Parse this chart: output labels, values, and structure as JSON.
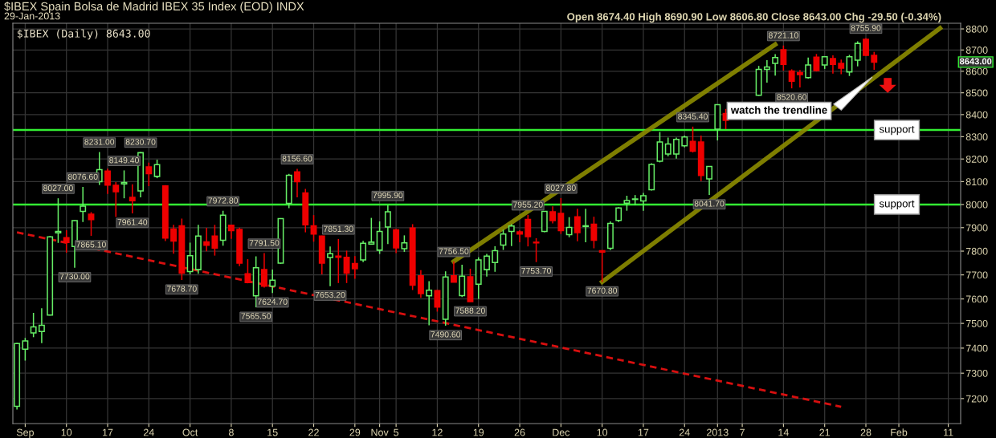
{
  "chart_data": {
    "type": "candlestick",
    "title": "$IBEX Spain Bolsa de Madrid IBEX 35 Index (EOD) INDX",
    "subtitle": "29-Jan-2013",
    "categories": [
      null,
      "Sep",
      null,
      null,
      null,
      null,
      "10",
      null,
      null,
      null,
      null,
      "17",
      null,
      null,
      null,
      null,
      "24",
      null,
      null,
      null,
      null,
      "Oct",
      null,
      null,
      null,
      null,
      "8",
      null,
      null,
      null,
      null,
      "15",
      null,
      null,
      null,
      null,
      "22",
      null,
      null,
      null,
      null,
      "29",
      null,
      null,
      "Nov",
      null,
      "5",
      null,
      null,
      null,
      null,
      "12",
      null,
      null,
      null,
      null,
      "19",
      null,
      null,
      null,
      null,
      "26",
      null,
      null,
      null,
      null,
      "Dec",
      null,
      null,
      null,
      null,
      "10",
      null,
      null,
      null,
      null,
      "17",
      null,
      null,
      null,
      null,
      "24",
      null,
      null,
      null,
      "2013",
      null,
      null,
      "7",
      null,
      null,
      null,
      null,
      "14",
      null,
      null,
      null,
      null,
      "21",
      null,
      null,
      null,
      null,
      "28",
      null,
      null,
      null,
      "Feb",
      null,
      null,
      null,
      null,
      null,
      "11",
      null
    ],
    "ohlc": [
      [
        7170,
        7421,
        7157,
        7418
      ],
      [
        7396,
        7441,
        7350,
        7429
      ],
      [
        7461,
        7543,
        7444,
        7486
      ],
      [
        7467,
        7562,
        7420,
        7492
      ],
      [
        7534,
        7864,
        7532,
        7861
      ],
      [
        7878,
        8027.0,
        7835,
        7884
      ],
      [
        7857,
        7889,
        7793,
        7837
      ],
      [
        7820,
        7932,
        7730.0,
        7930
      ],
      [
        7970,
        8076.6,
        7924,
        7993
      ],
      [
        7958,
        7967,
        7865.1,
        7935
      ],
      [
        8100,
        8231.0,
        8085,
        8153
      ],
      [
        8146,
        8157,
        8046,
        8085
      ],
      [
        8084,
        8098,
        7946,
        8056
      ],
      [
        8090,
        8149.4,
        8027,
        8096
      ],
      [
        8031,
        8088,
        7961.4,
        8016
      ],
      [
        8059,
        8230.7,
        8031,
        8228
      ],
      [
        8165,
        8184,
        8080,
        8135
      ],
      [
        8123,
        8197,
        8115,
        8175
      ],
      [
        8081,
        8085,
        7843,
        7856
      ],
      [
        7894,
        7912,
        7789,
        7843
      ],
      [
        7908,
        7939,
        7678.7,
        7707
      ],
      [
        7714,
        7836,
        7702,
        7781
      ],
      [
        7722,
        7912,
        7705,
        7864
      ],
      [
        7839,
        7899,
        7799,
        7825
      ],
      [
        7864,
        7912,
        7781,
        7813
      ],
      [
        7846,
        7972.8,
        7823,
        7954
      ],
      [
        7910,
        7912,
        7852,
        7887
      ],
      [
        7892,
        7900,
        7737,
        7749
      ],
      [
        7705,
        7766,
        7665,
        7668
      ],
      [
        7613,
        7778,
        7565.5,
        7730
      ],
      [
        7722,
        7791.5,
        7647,
        7653
      ],
      [
        7653,
        7722,
        7624.7,
        7678
      ],
      [
        7749,
        7941,
        7746,
        7939
      ],
      [
        8005,
        8134,
        7984,
        8128
      ],
      [
        8143,
        8156.6,
        8031,
        8100
      ],
      [
        8050,
        8068,
        7880,
        7912
      ],
      [
        7908,
        7954,
        7840,
        7873
      ],
      [
        7864,
        7866,
        7702,
        7749
      ],
      [
        7773,
        7820,
        7653.2,
        7789
      ],
      [
        7779,
        7851.3,
        7666,
        7774
      ],
      [
        7774,
        7802,
        7666,
        7707
      ],
      [
        7748,
        7779,
        7684,
        7726
      ],
      [
        7763,
        7844,
        7754,
        7833
      ],
      [
        7830,
        7942,
        7827,
        7838
      ],
      [
        7804,
        7927,
        7788,
        7884
      ],
      [
        7903,
        7995.9,
        7830,
        7968
      ],
      [
        7891,
        7895,
        7792,
        7814
      ],
      [
        7810,
        7867,
        7797,
        7835
      ],
      [
        7898,
        7915,
        7637,
        7657
      ],
      [
        7696,
        7720,
        7605,
        7622
      ],
      [
        7613,
        7674,
        7492,
        7636
      ],
      [
        7635,
        7637,
        7548,
        7567
      ],
      [
        7517,
        7715,
        7490.6,
        7691
      ],
      [
        7696,
        7756.5,
        7669,
        7670
      ],
      [
        7614,
        7743,
        7608,
        7695
      ],
      [
        7692,
        7726,
        7588.2,
        7589
      ],
      [
        7661,
        7774,
        7600,
        7763
      ],
      [
        7722,
        7788,
        7693,
        7779
      ],
      [
        7752,
        7821,
        7713,
        7802
      ],
      [
        7826,
        7891,
        7805,
        7873
      ],
      [
        7884,
        7915,
        7821,
        7907
      ],
      [
        7882,
        7889,
        7838,
        7873
      ],
      [
        7935,
        7955.2,
        7820,
        7862
      ],
      [
        7838,
        7855,
        7753.7,
        7835
      ],
      [
        7884,
        7972,
        7880,
        7970
      ],
      [
        7968,
        7992,
        7918,
        7930
      ],
      [
        7961,
        8027.8,
        7873,
        7887
      ],
      [
        7870,
        7945,
        7859,
        7901
      ],
      [
        7947,
        7981,
        7842,
        7879
      ],
      [
        7905,
        7981,
        7838,
        7908
      ],
      [
        7915,
        7947,
        7812,
        7846
      ],
      [
        7802,
        7804,
        7670.8,
        7796
      ],
      [
        7812,
        7927,
        7804,
        7918
      ],
      [
        7931,
        7988,
        7924,
        7985
      ],
      [
        8006,
        8038,
        7973,
        8017
      ],
      [
        8022,
        8041,
        7997,
        8024
      ],
      [
        8015,
        8050,
        7973,
        8038
      ],
      [
        8064,
        8181,
        8061,
        8176
      ],
      [
        8190,
        8321,
        8185,
        8276
      ],
      [
        8222,
        8296,
        8212,
        8267
      ],
      [
        8222,
        8296,
        8202,
        8288
      ],
      [
        8259,
        8305,
        8252,
        8299
      ],
      [
        8279,
        8345.4,
        8229,
        8235
      ],
      [
        8276,
        8305,
        8102,
        8127
      ],
      [
        8112,
        8168,
        8041.7,
        8167
      ],
      [
        8334,
        8446,
        8283,
        8445
      ],
      [
        8405,
        8426,
        8334,
        8374
      ],
      null,
      null,
      null,
      [
        8489,
        8625,
        8486,
        8609
      ],
      [
        8609,
        8652,
        8547,
        8620
      ],
      [
        8637,
        8680,
        8580,
        8664
      ],
      [
        8701,
        8721.1,
        8603,
        8632
      ],
      [
        8601,
        8609,
        8520.6,
        8554
      ],
      [
        8594,
        8606,
        8525,
        8584
      ],
      [
        8570,
        8664,
        8566,
        8629
      ],
      [
        8666,
        8681,
        8599,
        8603
      ],
      [
        8629,
        8669,
        8611,
        8668
      ],
      [
        8659,
        8675,
        8589,
        8632
      ],
      [
        8637,
        8655,
        8586,
        8614
      ],
      [
        8597,
        8677,
        8578,
        8668
      ],
      [
        8652,
        8741,
        8623,
        8731
      ],
      [
        8750,
        8755.9,
        8672,
        8675
      ],
      [
        8674.4,
        8690.9,
        8606.8,
        8643.0
      ],
      null,
      null,
      null,
      null,
      null,
      null,
      null,
      null,
      null,
      null
    ],
    "colors": [
      "#66ee66",
      "#66ee66",
      "#66ee66",
      "#66ee66",
      "#66ee66",
      "#66ee66",
      "#ee0000",
      "#66ee66",
      "#66ee66",
      "#ee0000",
      "#66ee66",
      "#ee0000",
      "#ee0000",
      "#66ee66",
      "#ee0000",
      "#66ee66",
      "#ee0000",
      "#66ee66",
      "#ee0000",
      "#ee0000",
      "#ee0000",
      "#66ee66",
      "#66ee66",
      "#ee0000",
      "#ee0000",
      "#66ee66",
      "#ee0000",
      "#ee0000",
      "#ee0000",
      "#66ee66",
      "#ee0000",
      "#66ee66",
      "#66ee66",
      "#66ee66",
      "#ee0000",
      "#ee0000",
      "#ee0000",
      "#ee0000",
      "#66ee66",
      "#ee0000",
      "#ee0000",
      "#ee0000",
      "#66ee66",
      "#66ee66",
      "#66ee66",
      "#66ee66",
      "#ee0000",
      "#66ee66",
      "#ee0000",
      "#ee0000",
      "#66ee66",
      "#ee0000",
      "#66ee66",
      "#ee0000",
      "#66ee66",
      "#ee0000",
      "#66ee66",
      "#66ee66",
      "#66ee66",
      "#66ee66",
      "#66ee66",
      "#ee0000",
      "#ee0000",
      "#ee0000",
      "#66ee66",
      "#ee0000",
      "#ee0000",
      "#66ee66",
      "#ee0000",
      "#66ee66",
      "#ee0000",
      "#ee0000",
      "#66ee66",
      "#66ee66",
      "#66ee66",
      "#66ee66",
      "#66ee66",
      "#66ee66",
      "#66ee66",
      "#66ee66",
      "#66ee66",
      "#66ee66",
      "#ee0000",
      "#ee0000",
      "#66ee66",
      "#66ee66",
      "#ee0000",
      null,
      null,
      null,
      "#66ee66",
      "#66ee66",
      "#66ee66",
      "#ee0000",
      "#ee0000",
      "#ee0000",
      "#66ee66",
      "#ee0000",
      "#66ee66",
      "#ee0000",
      "#ee0000",
      "#66ee66",
      "#66ee66",
      "#ee0000",
      "#ee0000",
      null,
      null,
      null,
      null,
      null,
      null,
      null,
      null,
      null,
      null
    ],
    "value_labels": [
      null,
      null,
      null,
      null,
      null,
      "8027.00",
      null,
      "7730.00",
      "8076.60",
      "7865.10",
      "8231.00",
      null,
      null,
      "8149.40",
      "7961.40",
      "8230.70",
      null,
      null,
      null,
      null,
      "7678.70",
      null,
      null,
      null,
      null,
      "7972.80",
      null,
      null,
      null,
      "7565.50",
      "7791.50",
      "7624.70",
      null,
      null,
      "8156.60",
      null,
      null,
      null,
      "7653.20",
      "7851.30",
      null,
      null,
      null,
      null,
      null,
      "7995.90",
      null,
      null,
      null,
      null,
      null,
      null,
      "7490.60",
      "7756.50",
      null,
      "7588.20",
      null,
      null,
      null,
      null,
      null,
      null,
      "7955.20",
      "7753.70",
      null,
      null,
      "8027.80",
      null,
      null,
      null,
      null,
      "7670.80",
      null,
      null,
      null,
      null,
      null,
      null,
      null,
      null,
      null,
      null,
      "8345.40",
      null,
      "8041.70",
      null,
      null,
      null,
      null,
      null,
      null,
      null,
      null,
      "8721.10",
      "8520.60",
      null,
      null,
      null,
      null,
      null,
      null,
      null,
      null,
      "8755.90",
      null,
      null,
      null,
      null,
      null,
      null,
      null,
      null,
      null,
      null,
      null
    ],
    "series": [
      {
        "type": "line",
        "color": "#ee1111",
        "line_style": "dashed",
        "values": [
          7880,
          null,
          null,
          null,
          null,
          null,
          null,
          null,
          null,
          null,
          null,
          null,
          null,
          null,
          null,
          null,
          null,
          null,
          null,
          null,
          null,
          null,
          null,
          null,
          null,
          null,
          null,
          null,
          null,
          null,
          null,
          null,
          null,
          null,
          null,
          null,
          null,
          null,
          null,
          null,
          null,
          null,
          null,
          null,
          null,
          null,
          null,
          null,
          null,
          null,
          null,
          null,
          null,
          null,
          null,
          null,
          null,
          null,
          null,
          null,
          null,
          null,
          null,
          null,
          null,
          null,
          null,
          null,
          null,
          null,
          null,
          null,
          null,
          null,
          null,
          null,
          null,
          null,
          null,
          null,
          null,
          null,
          null,
          null,
          null,
          null,
          null,
          null,
          null,
          null,
          null,
          null,
          null,
          null,
          null,
          null,
          null,
          null,
          null,
          null,
          7168,
          null,
          null,
          null,
          null,
          null,
          null,
          null,
          null,
          null,
          null,
          null,
          null,
          null,
          null
        ]
      },
      {
        "type": "line",
        "color": "#8c8c00",
        "line_style": "solid",
        "values": [
          null,
          null,
          null,
          null,
          null,
          null,
          null,
          null,
          null,
          null,
          null,
          null,
          null,
          null,
          null,
          null,
          null,
          null,
          null,
          null,
          null,
          null,
          null,
          null,
          null,
          null,
          null,
          null,
          null,
          null,
          null,
          null,
          null,
          null,
          null,
          null,
          null,
          null,
          null,
          null,
          null,
          null,
          null,
          null,
          null,
          null,
          null,
          null,
          null,
          null,
          null,
          null,
          null,
          7756.5,
          null,
          null,
          null,
          null,
          null,
          null,
          null,
          null,
          null,
          null,
          null,
          null,
          null,
          null,
          null,
          null,
          null,
          null,
          null,
          null,
          null,
          null,
          null,
          null,
          null,
          null,
          null,
          null,
          null,
          null,
          null,
          null,
          null,
          null,
          null,
          null,
          null,
          null,
          8726,
          null,
          null,
          null,
          null,
          null,
          null,
          null,
          null,
          null,
          null,
          null,
          null,
          null,
          null,
          null,
          null,
          null,
          null,
          null,
          null,
          null,
          null
        ]
      },
      {
        "type": "line",
        "color": "#8c8c00",
        "line_style": "solid",
        "values": [
          null,
          null,
          null,
          null,
          null,
          null,
          null,
          null,
          null,
          null,
          null,
          null,
          null,
          null,
          null,
          null,
          null,
          null,
          null,
          null,
          null,
          null,
          null,
          null,
          null,
          null,
          null,
          null,
          null,
          null,
          null,
          null,
          null,
          null,
          null,
          null,
          null,
          null,
          null,
          null,
          null,
          null,
          null,
          null,
          null,
          null,
          null,
          null,
          null,
          null,
          null,
          null,
          null,
          null,
          null,
          null,
          null,
          null,
          null,
          null,
          null,
          null,
          null,
          null,
          null,
          null,
          null,
          null,
          null,
          null,
          null,
          7670.8,
          null,
          null,
          null,
          null,
          null,
          null,
          null,
          null,
          null,
          null,
          null,
          null,
          null,
          null,
          null,
          null,
          null,
          null,
          null,
          null,
          null,
          null,
          null,
          null,
          null,
          null,
          null,
          null,
          null,
          null,
          null,
          null,
          null,
          null,
          null,
          null,
          null,
          null,
          null,
          null,
          8803,
          null,
          null
        ]
      }
    ],
    "ref_lines": [
      {
        "axis": "y",
        "value": 8330,
        "label": "support",
        "color": "#33ee33"
      },
      {
        "axis": "y",
        "value": 8000,
        "label": "support",
        "color": "#33ee33"
      }
    ],
    "annotations": [
      "Open 8674.40 High 8690.90 Low 8606.80 Close 8643.00 Chg -29.50 (-0.34%)",
      "$IBEX (Daily) 8643.00",
      "8643.00",
      "watch the trendline"
    ],
    "ylim": [
      7103,
      8827
    ],
    "yticks": [
      7200,
      7300,
      7400,
      7500,
      7600,
      7700,
      7800,
      7900,
      8000,
      8100,
      8200,
      8300,
      8400,
      8500,
      8600,
      8700,
      8800
    ],
    "log": true,
    "grid": true
  }
}
